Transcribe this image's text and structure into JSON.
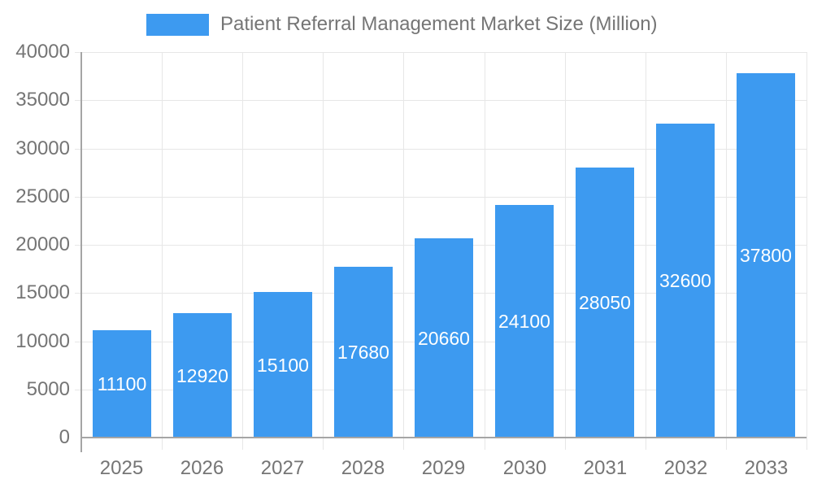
{
  "page": {
    "background_color": "#ffffff"
  },
  "legend": {
    "position": "top",
    "swatch_color": "#3D9AF0",
    "label": "Patient Referral Management Market Size (Million)"
  },
  "chart_data": {
    "type": "bar",
    "title": "Patient Referral Management Market Size (Million)",
    "categories": [
      "2025",
      "2026",
      "2027",
      "2028",
      "2029",
      "2030",
      "2031",
      "2032",
      "2033"
    ],
    "values": [
      11100,
      12920,
      15100,
      17680,
      20660,
      24100,
      28050,
      32600,
      37800
    ],
    "xlabel": "",
    "ylabel": "",
    "ylim": [
      0,
      40000
    ],
    "yticks": [
      0,
      5000,
      10000,
      15000,
      20000,
      25000,
      30000,
      35000,
      40000
    ],
    "grid": true,
    "legend_position": "top",
    "bar_color": "#3D9AF0",
    "bar_label_color": "#ffffff",
    "tick_label_color": "#757575",
    "gridline_color": "#e7e7e7",
    "axis_line_color": "#a5a5a5"
  }
}
